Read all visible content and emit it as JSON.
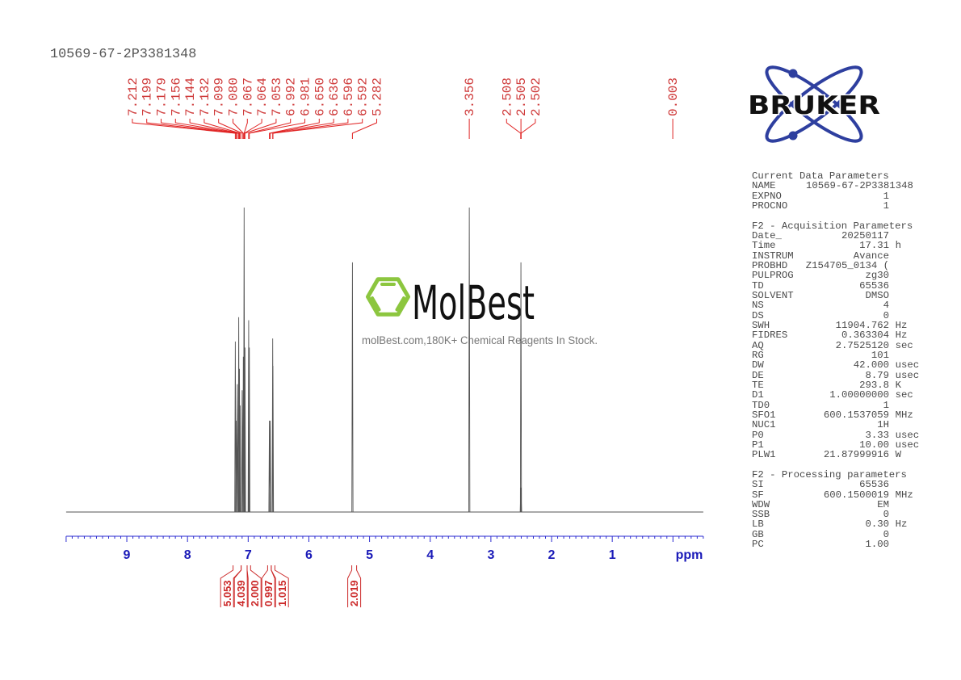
{
  "title": "10569-67-2P3381348",
  "logo": {
    "text": "BRUKER"
  },
  "watermark": {
    "brand": "MolBest",
    "tagline": "molBest.com,180K+ Chemical Reagents In Stock.",
    "hex_color": "#8cc63f"
  },
  "parameters": {
    "sections": [
      {
        "title": "Current Data Parameters",
        "rows": [
          {
            "label": "NAME",
            "value": "10569-67-2P3381348",
            "unit": ""
          },
          {
            "label": "EXPNO",
            "value": "1",
            "unit": ""
          },
          {
            "label": "PROCNO",
            "value": "1",
            "unit": ""
          }
        ]
      },
      {
        "title": "F2 - Acquisition Parameters",
        "rows": [
          {
            "label": "Date_",
            "value": "20250117",
            "unit": ""
          },
          {
            "label": "Time",
            "value": "17.31",
            "unit": "h"
          },
          {
            "label": "INSTRUM",
            "value": "Avance",
            "unit": ""
          },
          {
            "label": "PROBHD",
            "value": "Z154705_0134 (",
            "unit": ""
          },
          {
            "label": "PULPROG",
            "value": "zg30",
            "unit": ""
          },
          {
            "label": "TD",
            "value": "65536",
            "unit": ""
          },
          {
            "label": "SOLVENT",
            "value": "DMSO",
            "unit": ""
          },
          {
            "label": "NS",
            "value": "4",
            "unit": ""
          },
          {
            "label": "DS",
            "value": "0",
            "unit": ""
          },
          {
            "label": "SWH",
            "value": "11904.762",
            "unit": "Hz"
          },
          {
            "label": "FIDRES",
            "value": "0.363304",
            "unit": "Hz"
          },
          {
            "label": "AQ",
            "value": "2.7525120",
            "unit": "sec"
          },
          {
            "label": "RG",
            "value": "101",
            "unit": ""
          },
          {
            "label": "DW",
            "value": "42.000",
            "unit": "usec"
          },
          {
            "label": "DE",
            "value": "8.79",
            "unit": "usec"
          },
          {
            "label": "TE",
            "value": "293.8",
            "unit": "K"
          },
          {
            "label": "D1",
            "value": "1.00000000",
            "unit": "sec"
          },
          {
            "label": "TD0",
            "value": "1",
            "unit": ""
          },
          {
            "label": "SFO1",
            "value": "600.1537059",
            "unit": "MHz"
          },
          {
            "label": "NUC1",
            "value": "1H",
            "unit": ""
          },
          {
            "label": "P0",
            "value": "3.33",
            "unit": "usec"
          },
          {
            "label": "P1",
            "value": "10.00",
            "unit": "usec"
          },
          {
            "label": "PLW1",
            "value": "21.87999916",
            "unit": "W"
          }
        ]
      },
      {
        "title": "F2 - Processing parameters",
        "rows": [
          {
            "label": "SI",
            "value": "65536",
            "unit": ""
          },
          {
            "label": "SF",
            "value": "600.1500019",
            "unit": "MHz"
          },
          {
            "label": "WDW",
            "value": "EM",
            "unit": ""
          },
          {
            "label": "SSB",
            "value": "0",
            "unit": ""
          },
          {
            "label": "LB",
            "value": "0.30",
            "unit": "Hz"
          },
          {
            "label": "GB",
            "value": "0",
            "unit": ""
          },
          {
            "label": "PC",
            "value": "1.00",
            "unit": ""
          }
        ]
      }
    ]
  },
  "chart_data": {
    "type": "line",
    "title": "10569-67-2P3381348",
    "xlabel": "ppm",
    "ylabel": "",
    "xlim": [
      10.0,
      -0.5
    ],
    "x_ticks": [
      9,
      8,
      7,
      6,
      5,
      4,
      3,
      2,
      1
    ],
    "grid": false,
    "legend": null,
    "peaks": [
      {
        "label": "7.212",
        "ppm": 7.212,
        "intensity": 0.56
      },
      {
        "label": "7.199",
        "ppm": 7.199,
        "intensity": 0.3
      },
      {
        "label": "7.179",
        "ppm": 7.179,
        "intensity": 0.42
      },
      {
        "label": "7.156",
        "ppm": 7.156,
        "intensity": 0.64
      },
      {
        "label": "7.144",
        "ppm": 7.144,
        "intensity": 0.47
      },
      {
        "label": "7.132",
        "ppm": 7.132,
        "intensity": 0.35
      },
      {
        "label": "7.099",
        "ppm": 7.099,
        "intensity": 0.4
      },
      {
        "label": "7.080",
        "ppm": 7.08,
        "intensity": 0.51
      },
      {
        "label": "7.067",
        "ppm": 7.067,
        "intensity": 1.0
      },
      {
        "label": "7.064",
        "ppm": 7.064,
        "intensity": 0.6
      },
      {
        "label": "7.053",
        "ppm": 7.053,
        "intensity": 0.54
      },
      {
        "label": "6.992",
        "ppm": 6.992,
        "intensity": 0.63
      },
      {
        "label": "6.981",
        "ppm": 6.981,
        "intensity": 0.54
      },
      {
        "label": "6.650",
        "ppm": 6.65,
        "intensity": 0.3
      },
      {
        "label": "6.636",
        "ppm": 6.636,
        "intensity": 0.3
      },
      {
        "label": "6.596",
        "ppm": 6.596,
        "intensity": 0.57
      },
      {
        "label": "6.592",
        "ppm": 6.592,
        "intensity": 0.48
      },
      {
        "label": "5.282",
        "ppm": 5.282,
        "intensity": 0.82
      },
      {
        "label": "3.356",
        "ppm": 3.356,
        "intensity": 1.0
      },
      {
        "label": "2.508",
        "ppm": 2.508,
        "intensity": 0.08
      },
      {
        "label": "2.505",
        "ppm": 2.505,
        "intensity": 0.82
      },
      {
        "label": "2.502",
        "ppm": 2.502,
        "intensity": 0.08
      },
      {
        "label": "0.003",
        "ppm": 0.003,
        "intensity": 0.0
      }
    ],
    "integrals": [
      {
        "value": "5.053",
        "from": 7.249,
        "to": 7.116
      },
      {
        "value": "4.039",
        "from": 7.116,
        "to": 7.017
      },
      {
        "value": "2.000",
        "from": 7.017,
        "to": 6.96
      },
      {
        "value": "0.997",
        "from": 6.68,
        "to": 6.62
      },
      {
        "value": "1.015",
        "from": 6.62,
        "to": 6.56
      },
      {
        "value": "2.019",
        "from": 5.293,
        "to": 5.213
      }
    ],
    "colors": {
      "spectrum": "#555555",
      "axis": "#2a2ad0",
      "peak_leader": "#e02424",
      "integral": "#cc2a2a"
    }
  }
}
